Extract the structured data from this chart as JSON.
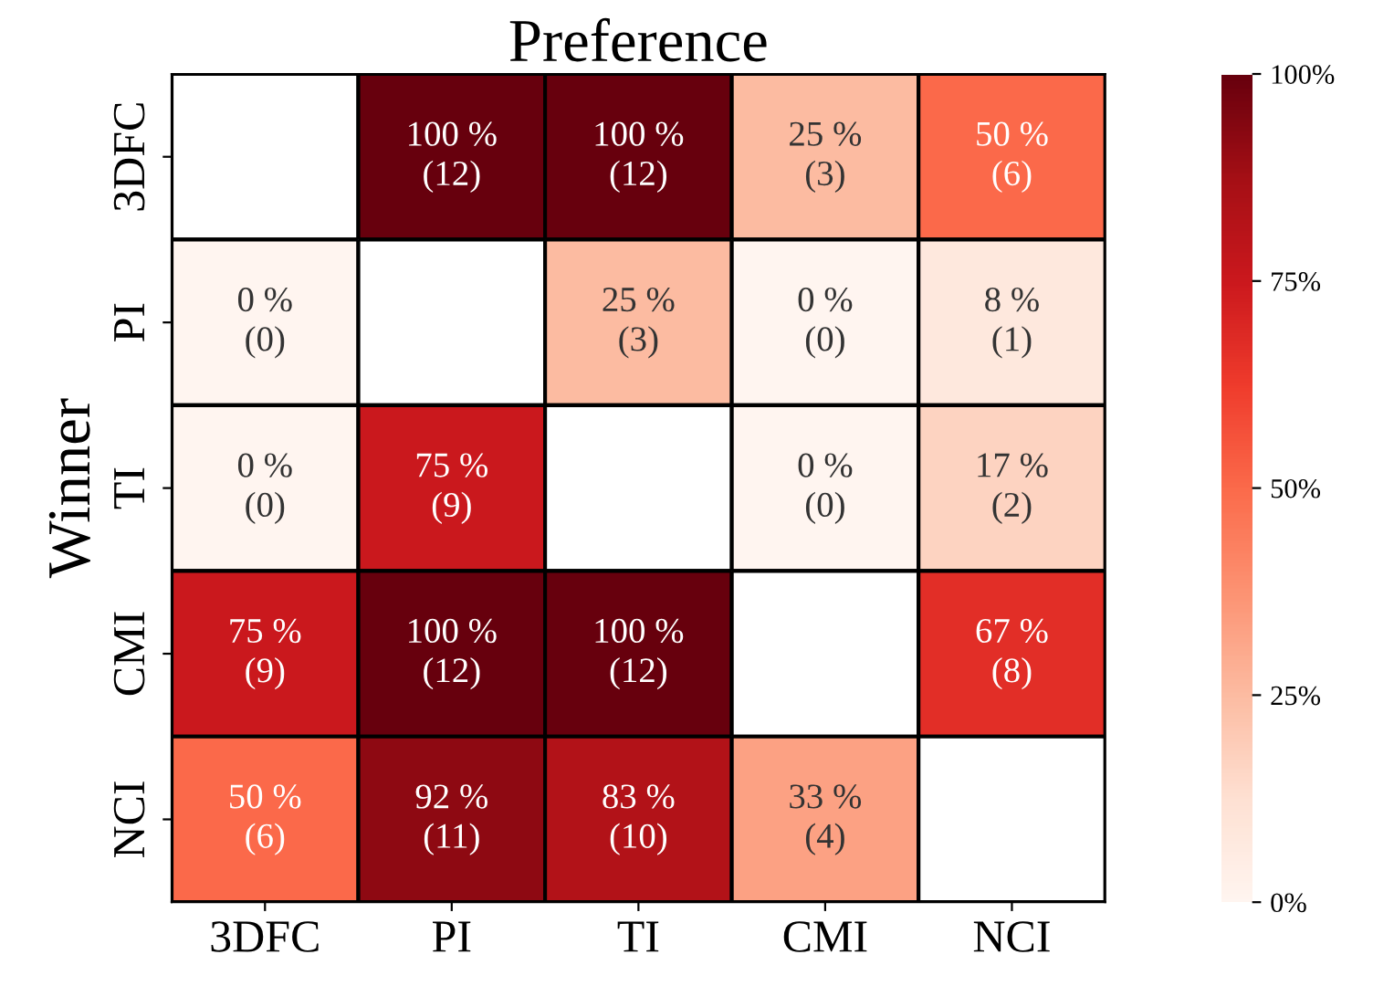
{
  "chart_data": {
    "type": "heatmap",
    "title": "Preference",
    "ylabel": "Winner",
    "categories": [
      "3DFC",
      "PI",
      "TI",
      "CMI",
      "NCI"
    ],
    "y_categories": [
      "3DFC",
      "PI",
      "TI",
      "CMI",
      "NCI"
    ],
    "cells": [
      [
        null,
        100,
        100,
        25,
        50
      ],
      [
        0,
        null,
        25,
        0,
        8
      ],
      [
        0,
        75,
        null,
        0,
        17
      ],
      [
        75,
        100,
        100,
        null,
        67
      ],
      [
        50,
        92,
        83,
        33,
        null
      ]
    ],
    "cell_labels": [
      [
        null,
        "100 %\n(12)",
        "100 %\n(12)",
        "25 %\n(3)",
        "50 %\n(6)"
      ],
      [
        "0 %\n(0)",
        null,
        "25 %\n(3)",
        "0 %\n(0)",
        "8 %\n(1)"
      ],
      [
        "0 %\n(0)",
        "75 %\n(9)",
        null,
        "0 %\n(0)",
        "17 %\n(2)"
      ],
      [
        "75 %\n(9)",
        "100 %\n(12)",
        "100 %\n(12)",
        null,
        "67 %\n(8)"
      ],
      [
        "50 %\n(6)",
        "92 %\n(11)",
        "83 %\n(10)",
        "33 %\n(4)",
        null
      ]
    ],
    "clim": [
      0,
      100
    ],
    "cticks": [
      {
        "value": 0,
        "label": "0%"
      },
      {
        "value": 25,
        "label": "25%"
      },
      {
        "value": 50,
        "label": "50%"
      },
      {
        "value": 75,
        "label": "75%"
      },
      {
        "value": 100,
        "label": "100%"
      }
    ]
  }
}
